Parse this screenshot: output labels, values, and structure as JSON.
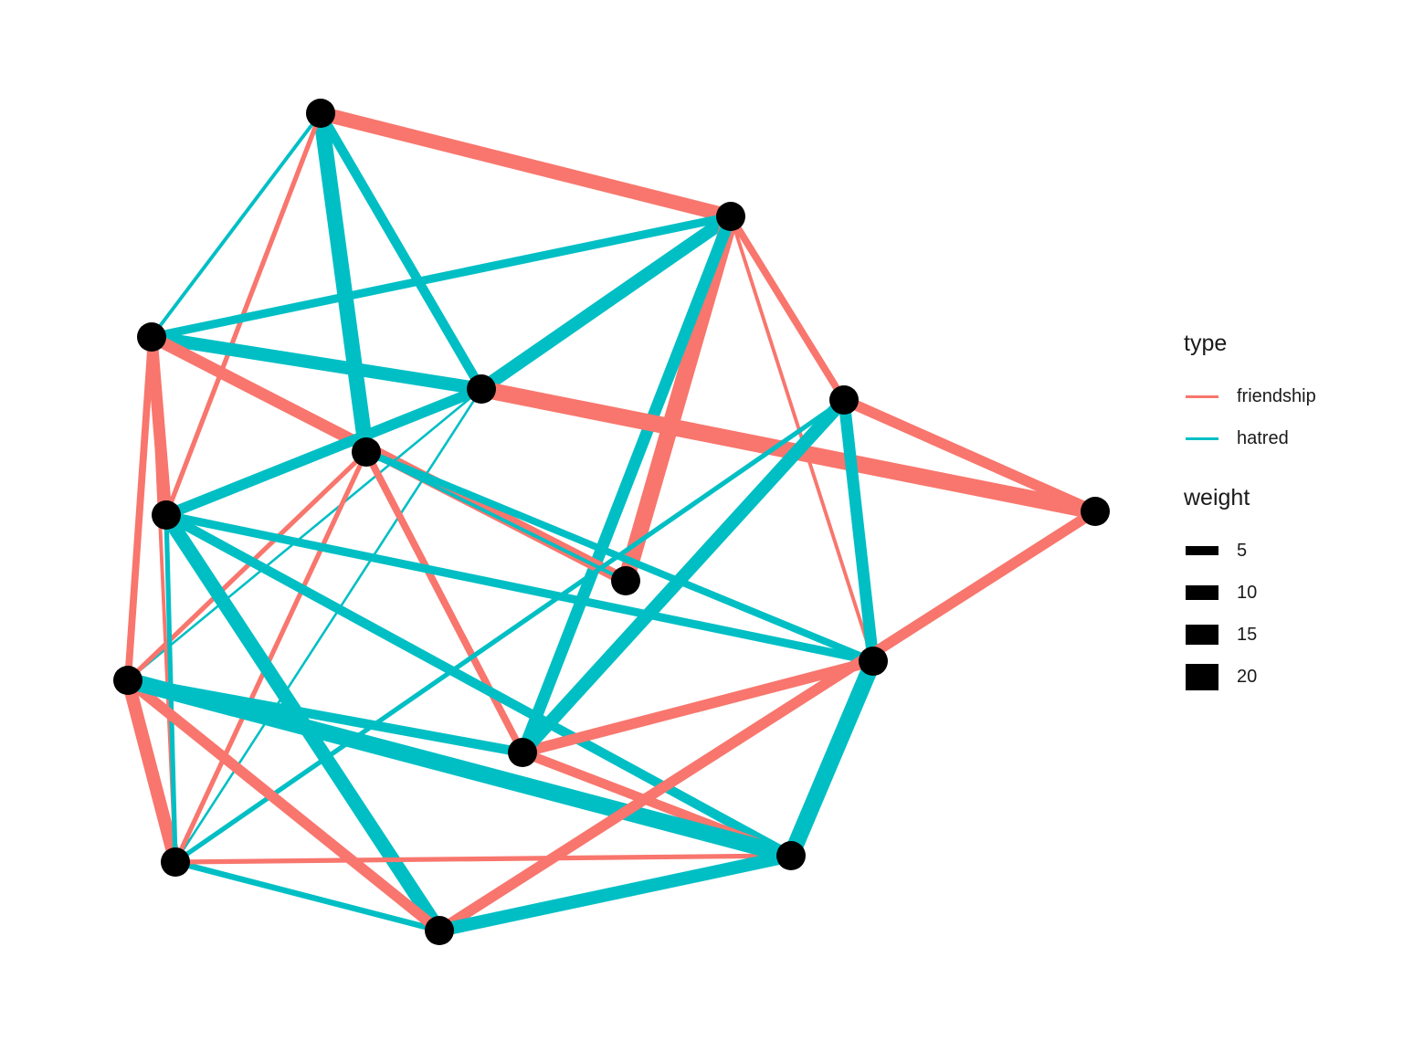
{
  "colors": {
    "friendship": "#f8766d",
    "hatred": "#00bfc4",
    "node": "#000000"
  },
  "legend": {
    "type_title": "type",
    "type_items": [
      {
        "label": "friendship",
        "color": "#f8766d"
      },
      {
        "label": "hatred",
        "color": "#00bfc4"
      }
    ],
    "weight_title": "weight",
    "weight_items": [
      {
        "label": "5",
        "value": 5
      },
      {
        "label": "10",
        "value": 10
      },
      {
        "label": "15",
        "value": 15
      },
      {
        "label": "20",
        "value": 20
      }
    ]
  },
  "graph": {
    "nodes": [
      "n1",
      "n2",
      "n3",
      "n4",
      "n5",
      "n6",
      "n7",
      "n8",
      "n9",
      "n10",
      "n11",
      "n12",
      "n13",
      "n14",
      "n15"
    ],
    "edges": [
      {
        "from": "n1",
        "to": "n2",
        "type": "friendship",
        "weight": 12
      },
      {
        "from": "n1",
        "to": "n5",
        "type": "hatred",
        "weight": 13
      },
      {
        "from": "n1",
        "to": "n4",
        "type": "hatred",
        "weight": 8
      },
      {
        "from": "n1",
        "to": "n3",
        "type": "hatred",
        "weight": 3
      },
      {
        "from": "n1",
        "to": "n7",
        "type": "friendship",
        "weight": 4
      },
      {
        "from": "n2",
        "to": "n3",
        "type": "hatred",
        "weight": 7
      },
      {
        "from": "n2",
        "to": "n4",
        "type": "hatred",
        "weight": 11
      },
      {
        "from": "n2",
        "to": "n8",
        "type": "friendship",
        "weight": 14
      },
      {
        "from": "n2",
        "to": "n12",
        "type": "hatred",
        "weight": 10
      },
      {
        "from": "n2",
        "to": "n9",
        "type": "friendship",
        "weight": 3
      },
      {
        "from": "n2",
        "to": "n6",
        "type": "friendship",
        "weight": 6
      },
      {
        "from": "n3",
        "to": "n4",
        "type": "hatred",
        "weight": 11
      },
      {
        "from": "n3",
        "to": "n8",
        "type": "friendship",
        "weight": 10
      },
      {
        "from": "n3",
        "to": "n7",
        "type": "friendship",
        "weight": 10
      },
      {
        "from": "n4",
        "to": "n7",
        "type": "hatred",
        "weight": 9
      },
      {
        "from": "n4",
        "to": "n10",
        "type": "hatred",
        "weight": 2
      },
      {
        "from": "n4",
        "to": "n11",
        "type": "friendship",
        "weight": 14
      },
      {
        "from": "n4",
        "to": "n13",
        "type": "hatred",
        "weight": 2
      },
      {
        "from": "n5",
        "to": "n9",
        "type": "hatred",
        "weight": 6
      },
      {
        "from": "n5",
        "to": "n12",
        "type": "friendship",
        "weight": 6
      },
      {
        "from": "n5",
        "to": "n10",
        "type": "friendship",
        "weight": 4
      },
      {
        "from": "n5",
        "to": "n8",
        "type": "hatred",
        "weight": 3
      },
      {
        "from": "n5",
        "to": "n13",
        "type": "friendship",
        "weight": 4
      },
      {
        "from": "n7",
        "to": "n9",
        "type": "hatred",
        "weight": 7
      },
      {
        "from": "n7",
        "to": "n14",
        "type": "hatred",
        "weight": 12
      },
      {
        "from": "n7",
        "to": "n15",
        "type": "hatred",
        "weight": 8
      },
      {
        "from": "n3",
        "to": "n10",
        "type": "friendship",
        "weight": 6
      },
      {
        "from": "n3",
        "to": "n13",
        "type": "friendship",
        "weight": 3
      },
      {
        "from": "n9",
        "to": "n12",
        "type": "friendship",
        "weight": 9
      },
      {
        "from": "n9",
        "to": "n6",
        "type": "hatred",
        "weight": 10
      },
      {
        "from": "n9",
        "to": "n15",
        "type": "hatred",
        "weight": 14
      },
      {
        "from": "n6",
        "to": "n12",
        "type": "hatred",
        "weight": 11
      },
      {
        "from": "n6",
        "to": "n11",
        "type": "friendship",
        "weight": 9
      },
      {
        "from": "n6",
        "to": "n13",
        "type": "hatred",
        "weight": 4
      },
      {
        "from": "n12",
        "to": "n10",
        "type": "hatred",
        "weight": 8
      },
      {
        "from": "n12",
        "to": "n15",
        "type": "friendship",
        "weight": 8
      },
      {
        "from": "n13",
        "to": "n10",
        "type": "friendship",
        "weight": 11
      },
      {
        "from": "n13",
        "to": "n14",
        "type": "hatred",
        "weight": 5
      },
      {
        "from": "n13",
        "to": "n7",
        "type": "hatred",
        "weight": 4
      },
      {
        "from": "n13",
        "to": "n15",
        "type": "friendship",
        "weight": 4
      },
      {
        "from": "n10",
        "to": "n14",
        "type": "friendship",
        "weight": 9
      },
      {
        "from": "n10",
        "to": "n15",
        "type": "hatred",
        "weight": 14
      },
      {
        "from": "n14",
        "to": "n11",
        "type": "friendship",
        "weight": 9
      },
      {
        "from": "n14",
        "to": "n15",
        "type": "hatred",
        "weight": 11
      }
    ]
  }
}
